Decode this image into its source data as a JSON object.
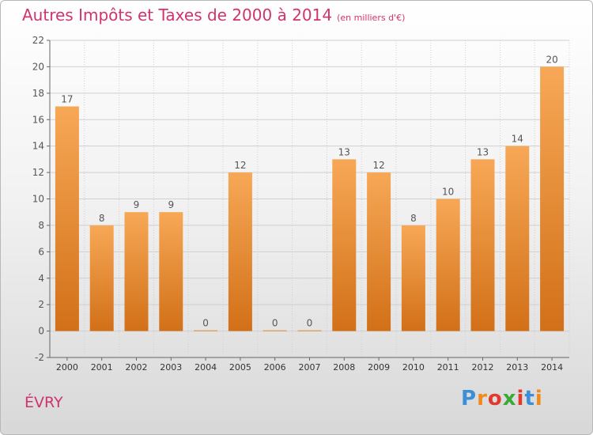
{
  "header": {
    "title": "Autres Impôts et Taxes de 2000 à 2014",
    "unit": "(en milliers d'€)"
  },
  "footer": {
    "place": "ÉVRY",
    "logo_letters": [
      "P",
      "r",
      "o",
      "x",
      "i",
      "t",
      "i"
    ],
    "logo_colors": [
      "#3b8fd6",
      "#f08a1c",
      "#e2392c",
      "#3aa935",
      "#e2392c",
      "#3b8fd6",
      "#f08a1c"
    ]
  },
  "colors": {
    "bar_top": "#f7a856",
    "bar_bottom": "#d27018",
    "grid": "#d0d0d0",
    "text": "#555555",
    "accent": "#d1336e"
  },
  "chart_data": {
    "type": "bar",
    "categories": [
      "2000",
      "2001",
      "2002",
      "2003",
      "2004",
      "2005",
      "2006",
      "2007",
      "2008",
      "2009",
      "2010",
      "2011",
      "2012",
      "2013",
      "2014"
    ],
    "values": [
      17,
      8,
      9,
      9,
      0,
      12,
      0,
      0,
      13,
      12,
      8,
      10,
      13,
      14,
      20
    ],
    "ylim": [
      -2,
      22
    ],
    "yticks": [
      -2,
      0,
      2,
      4,
      6,
      8,
      10,
      12,
      14,
      16,
      18,
      20,
      22
    ],
    "grid": true,
    "data_labels": true
  }
}
